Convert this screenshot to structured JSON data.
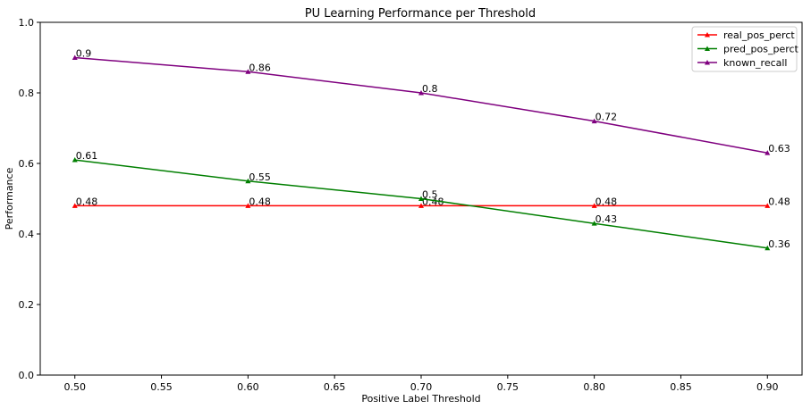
{
  "chart_data": {
    "type": "line",
    "title": "PU Learning Performance per Threshold",
    "xlabel": "Positive Label Threshold",
    "ylabel": "Performance",
    "xlim": [
      0.48,
      0.92
    ],
    "ylim": [
      0.0,
      1.0
    ],
    "x": [
      0.5,
      0.6,
      0.7,
      0.8,
      0.9
    ],
    "x_ticks": [
      "0.50",
      "0.55",
      "0.60",
      "0.65",
      "0.70",
      "0.75",
      "0.80",
      "0.85",
      "0.90"
    ],
    "x_tick_values": [
      0.5,
      0.55,
      0.6,
      0.65,
      0.7,
      0.75,
      0.8,
      0.85,
      0.9
    ],
    "y_ticks": [
      "0.0",
      "0.2",
      "0.4",
      "0.6",
      "0.8",
      "1.0"
    ],
    "y_tick_values": [
      0.0,
      0.2,
      0.4,
      0.6,
      0.8,
      1.0
    ],
    "grid": false,
    "legend_position": "top-right",
    "series": [
      {
        "name": "real_pos_perct",
        "color": "#ff0000",
        "values": [
          0.48,
          0.48,
          0.48,
          0.48,
          0.48
        ],
        "labels": [
          "0.48",
          "0.48",
          "0.48",
          "0.48",
          "0.48"
        ]
      },
      {
        "name": "pred_pos_perct",
        "color": "#007f00",
        "values": [
          0.61,
          0.55,
          0.5,
          0.43,
          0.36
        ],
        "labels": [
          "0.61",
          "0.55",
          "0.5",
          "0.43",
          "0.36"
        ]
      },
      {
        "name": "known_recall",
        "color": "#7f007f",
        "values": [
          0.9,
          0.86,
          0.8,
          0.72,
          0.63
        ],
        "labels": [
          "0.9",
          "0.86",
          "0.8",
          "0.72",
          "0.63"
        ]
      }
    ]
  }
}
